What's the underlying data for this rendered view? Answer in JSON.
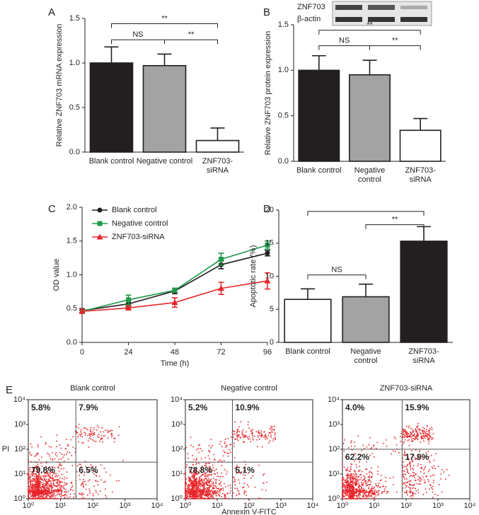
{
  "chart_data": [
    {
      "type": "bar",
      "panel": "A",
      "ylabel": "Relative ZNF703 mRNA expression",
      "categories": [
        "Blank control",
        "Negative control",
        "ZNF703-\nsiRNA"
      ],
      "values": [
        1.0,
        0.97,
        0.13
      ],
      "errors": [
        0.18,
        0.13,
        0.14
      ],
      "colors": [
        "#231f20",
        "#a3a3a3",
        "#ffffff"
      ],
      "ylim": [
        0,
        1.5
      ],
      "yticks": [
        {
          "value": 0,
          "label": "0.0"
        },
        0.5,
        {
          "value": 1,
          "label": "1.0"
        },
        1.5
      ],
      "brackets": [
        {
          "from": 0,
          "to": 1,
          "y": 1.26,
          "label": "NS"
        },
        {
          "from": 1,
          "to": 2,
          "y": 1.26,
          "label": "**"
        },
        {
          "from": 0,
          "to": 2,
          "y": 1.44,
          "label": "**"
        }
      ]
    },
    {
      "type": "bar",
      "panel": "B",
      "ylabel": "Relative ZNF703 protein expression",
      "blot_labels": [
        "ZNF703",
        "β-actin"
      ],
      "categories": [
        "Blank control",
        "Negative\ncontrol",
        "ZNF703-\nsiRNA"
      ],
      "values": [
        1.0,
        0.95,
        0.34
      ],
      "errors": [
        0.16,
        0.16,
        0.13
      ],
      "colors": [
        "#231f20",
        "#a3a3a3",
        "#ffffff"
      ],
      "ylim": [
        0,
        1.5
      ],
      "yticks": [
        {
          "value": 0,
          "label": "0.0"
        },
        0.5,
        {
          "value": 1,
          "label": "1.0"
        },
        1.5
      ],
      "brackets": [
        {
          "from": 0,
          "to": 1,
          "y": 1.27,
          "label": "NS"
        },
        {
          "from": 1,
          "to": 2,
          "y": 1.27,
          "label": "**"
        },
        {
          "from": 0,
          "to": 2,
          "y": 1.44,
          "label": "**"
        }
      ]
    },
    {
      "type": "line",
      "panel": "C",
      "xlabel": "Time (h)",
      "ylabel": "OD value",
      "x": [
        0,
        24,
        48,
        72,
        96
      ],
      "xlim": [
        0,
        96
      ],
      "xticks": [
        0,
        24,
        48,
        72,
        96
      ],
      "ylim": [
        0,
        2
      ],
      "yticks": [
        {
          "value": 0,
          "label": "0.0"
        },
        0.5,
        {
          "value": 1,
          "label": "1.0"
        },
        1.5,
        {
          "value": 2,
          "label": "2.0"
        }
      ],
      "legend": "top-left",
      "series": [
        {
          "name": "Blank control",
          "color": "#231f20",
          "marker": "circle",
          "values": [
            0.47,
            0.57,
            0.76,
            1.15,
            1.32
          ],
          "errors": [
            0.03,
            0.05,
            0.04,
            0.06,
            0.04
          ]
        },
        {
          "name": "Negative control",
          "color": "#1f9a4a",
          "marker": "square",
          "values": [
            0.46,
            0.63,
            0.77,
            1.23,
            1.44
          ],
          "errors": [
            0.02,
            0.07,
            0.03,
            0.09,
            0.06
          ]
        },
        {
          "name": "ZNF703-siRNA",
          "color": "#e8262b",
          "marker": "triangle",
          "values": [
            0.46,
            0.51,
            0.59,
            0.8,
            0.91
          ],
          "errors": [
            0.03,
            0.03,
            0.07,
            0.09,
            0.12
          ]
        }
      ]
    },
    {
      "type": "bar",
      "panel": "D",
      "ylabel": "Apoptotic rate (%)",
      "categories": [
        "Blank control",
        "Negative\ncontrol",
        "ZNF703-\nsiRNA"
      ],
      "values": [
        6.5,
        6.9,
        15.3
      ],
      "errors": [
        1.6,
        1.9,
        2.2
      ],
      "colors": [
        "#ffffff",
        "#a3a3a3",
        "#231f20"
      ],
      "ylim": [
        0,
        20
      ],
      "yticks": [
        0,
        5,
        10,
        15,
        20
      ],
      "brackets": [
        {
          "from": 0,
          "to": 1,
          "y": 10.2,
          "label": "NS"
        },
        {
          "from": 1,
          "to": 2,
          "y": 17.8,
          "label": "**"
        },
        {
          "from": 0,
          "to": 2,
          "y": 19.8
        }
      ]
    },
    {
      "type": "flow",
      "panel": "E",
      "title": "Blank control",
      "ylabel": "PI",
      "xlim": [
        1,
        10000
      ],
      "ylim": [
        1,
        10000
      ],
      "xgate": 30,
      "ygate": 30,
      "color": "#e8262b",
      "xticks": [
        {
          "value": 1,
          "label": "10⁰"
        },
        {
          "value": 10,
          "label": "10¹"
        },
        {
          "value": 100,
          "label": "10²"
        },
        {
          "value": 1000,
          "label": "10³"
        },
        {
          "value": 10000,
          "label": "10⁴"
        }
      ],
      "yticks": [
        {
          "value": 1,
          "label": "10⁰"
        },
        {
          "value": 10,
          "label": "10¹"
        },
        {
          "value": 100,
          "label": "10²"
        },
        {
          "value": 1000,
          "label": "10³"
        },
        {
          "value": 10000,
          "label": "10⁴"
        }
      ],
      "values": [
        5.8,
        7.9,
        79.8,
        6.5
      ],
      "value_labels": [
        "5.8%",
        "7.9%",
        "79.8%",
        "6.5%"
      ]
    },
    {
      "type": "flow",
      "title": "Negative control",
      "xlabel": "Annexin V-FITC",
      "xlim": [
        1,
        10000
      ],
      "ylim": [
        1,
        10000
      ],
      "xgate": 30,
      "ygate": 30,
      "color": "#e8262b",
      "xticks": [
        {
          "value": 1,
          "label": "10⁰"
        },
        {
          "value": 10,
          "label": "10¹"
        },
        {
          "value": 100,
          "label": "10²"
        },
        {
          "value": 1000,
          "label": "10³"
        },
        {
          "value": 10000,
          "label": "10⁴"
        }
      ],
      "yticks": [
        {
          "value": 1,
          "label": "10⁰"
        },
        {
          "value": 10,
          "label": "10¹"
        },
        {
          "value": 100,
          "label": "10²"
        },
        {
          "value": 1000,
          "label": "10³"
        },
        {
          "value": 10000,
          "label": "10⁴"
        }
      ],
      "values": [
        5.2,
        10.9,
        78.8,
        5.1
      ],
      "value_labels": [
        "5.2%",
        "10.9%",
        "78.8%",
        "5.1%"
      ]
    },
    {
      "type": "flow",
      "title": "ZNF703-siRNA",
      "xlim": [
        1,
        10000
      ],
      "ylim": [
        1,
        10000
      ],
      "xgate": 75,
      "ygate": 100,
      "color": "#e8262b",
      "xticks": [
        {
          "value": 1,
          "label": "10⁰"
        },
        {
          "value": 10,
          "label": "10¹"
        },
        {
          "value": 100,
          "label": "10²"
        },
        {
          "value": 1000,
          "label": "10³"
        },
        {
          "value": 10000,
          "label": "10⁴"
        }
      ],
      "yticks": [
        {
          "value": 1,
          "label": "10⁰"
        },
        {
          "value": 10,
          "label": "10¹"
        },
        {
          "value": 100,
          "label": "10²"
        },
        {
          "value": 1000,
          "label": "10³"
        },
        {
          "value": 10000,
          "label": "10⁴"
        }
      ],
      "values": [
        4.0,
        15.9,
        62.2,
        17.9
      ],
      "value_labels": [
        "4.0%",
        "15.9%",
        "62.2%",
        "17.9%"
      ]
    }
  ]
}
